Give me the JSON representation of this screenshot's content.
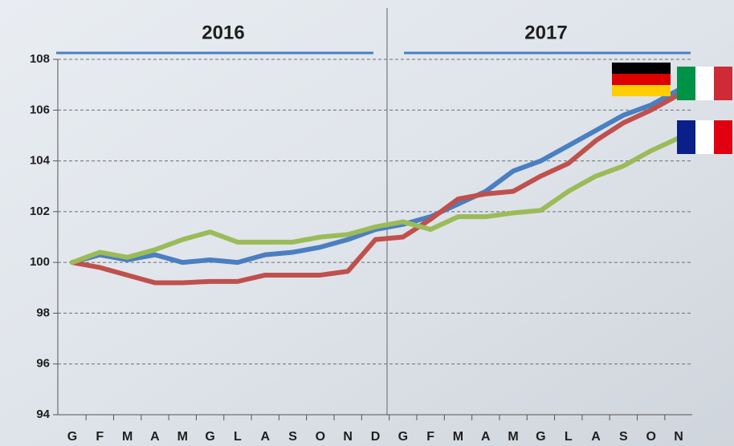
{
  "chart_data": {
    "type": "line",
    "annotations": [
      "2016",
      "2017"
    ],
    "categories": [
      "G",
      "F",
      "M",
      "A",
      "M",
      "G",
      "L",
      "A",
      "S",
      "O",
      "N",
      "D",
      "G",
      "F",
      "M",
      "A",
      "M",
      "G",
      "L",
      "A",
      "S",
      "O",
      "N"
    ],
    "series": [
      {
        "color": "#4a7fc1",
        "values": [
          100,
          100.3,
          100.1,
          100.3,
          100.0,
          100.1,
          100.0,
          100.3,
          100.4,
          100.6,
          100.9,
          101.3,
          101.5,
          101.8,
          102.3,
          102.8,
          103.6,
          104.0,
          104.6,
          105.2,
          105.8,
          106.2,
          106.8
        ]
      },
      {
        "color": "#c0504d",
        "values": [
          100,
          99.8,
          99.5,
          99.2,
          99.2,
          99.25,
          99.25,
          99.5,
          99.5,
          99.5,
          99.65,
          100.9,
          101.0,
          101.7,
          102.5,
          102.7,
          102.8,
          103.4,
          103.9,
          104.8,
          105.5,
          106.0,
          106.6
        ]
      },
      {
        "color": "#9bbb59",
        "values": [
          100,
          100.4,
          100.2,
          100.5,
          100.9,
          101.2,
          100.8,
          100.8,
          100.8,
          101.0,
          101.1,
          101.4,
          101.6,
          101.3,
          101.8,
          101.8,
          101.95,
          102.05,
          102.8,
          103.4,
          103.8,
          104.4,
          104.9
        ]
      }
    ],
    "ylim": [
      94,
      108
    ],
    "yticks": [
      94,
      96,
      98,
      100,
      102,
      104,
      106,
      108
    ],
    "grid": true
  }
}
